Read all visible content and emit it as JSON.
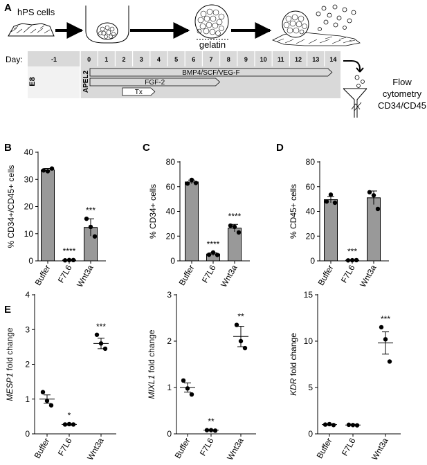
{
  "panelA": {
    "letter": "A",
    "cells_label": "hPS cells",
    "gelatin_label": "gelatin",
    "day_label": "Day:",
    "days": [
      "-1",
      "0",
      "1",
      "2",
      "3",
      "4",
      "5",
      "6",
      "7",
      "8",
      "9",
      "10",
      "11",
      "12",
      "13",
      "14"
    ],
    "e8_label": "E8",
    "apel_label": "APEL2",
    "bars": [
      {
        "label": "BMP4/SCF/VEG-F",
        "start_day": 0,
        "end_day": 14.5
      },
      {
        "label": "FGF-2",
        "start_day": 0,
        "end_day": 8
      },
      {
        "label": "Tx",
        "start_day": 2,
        "end_day": 4
      }
    ],
    "flow_label_lines": [
      "Flow",
      "cytometry",
      "CD34/CD45"
    ]
  },
  "colors": {
    "bar_fill": "#999999",
    "grey_box": "#d9d9d9",
    "light_box": "#f2f2f2",
    "arrow": "#000000"
  },
  "chart_data": [
    {
      "panel": "B",
      "type": "bar",
      "categories": [
        "Buffer",
        "F7L6",
        "Wnt3a"
      ],
      "values": [
        33.5,
        0.3,
        12.3
      ],
      "errors": [
        0.5,
        0.15,
        3.2
      ],
      "points": [
        [
          33.3,
          33.0,
          34.0
        ],
        [
          0.2,
          0.3,
          0.3
        ],
        [
          15.5,
          12.5,
          9.0
        ]
      ],
      "significance": [
        "",
        "****",
        "***"
      ],
      "ylabel": "% CD34+/CD45+ cells",
      "ylim": [
        0,
        40
      ],
      "yticks": [
        0,
        10,
        20,
        30,
        40
      ]
    },
    {
      "panel": "C",
      "type": "bar",
      "categories": [
        "Buffer",
        "F7L6",
        "Wnt3a"
      ],
      "values": [
        63.8,
        5.5,
        26.5
      ],
      "errors": [
        1.5,
        1.2,
        3.0
      ],
      "points": [
        [
          62.5,
          65.5,
          63.0
        ],
        [
          5.0,
          6.8,
          4.8
        ],
        [
          28.5,
          27.5,
          23.0
        ]
      ],
      "significance": [
        "",
        "****",
        "****"
      ],
      "ylabel": "% CD34+ cells",
      "ylim": [
        0,
        80
      ],
      "yticks": [
        0,
        20,
        40,
        60,
        80
      ]
    },
    {
      "panel": "D",
      "type": "bar",
      "categories": [
        "Buffer",
        "F7L6",
        "Wnt3a"
      ],
      "values": [
        49.5,
        0.5,
        51.0
      ],
      "errors": [
        2.5,
        0.2,
        5.5
      ],
      "points": [
        [
          48.0,
          53.5,
          47.0
        ],
        [
          0.4,
          0.5,
          0.6
        ],
        [
          55.5,
          53.0,
          42.0
        ]
      ],
      "significance": [
        "",
        "***",
        ""
      ],
      "ylabel": "% CD45+ cells",
      "ylim": [
        0,
        80
      ],
      "yticks": [
        0,
        20,
        40,
        60,
        80
      ]
    },
    {
      "panel": "E",
      "type": "scatter",
      "categories": [
        "Buffer",
        "F7L6",
        "Wnt3a"
      ],
      "means": [
        1.0,
        0.27,
        2.6
      ],
      "errors": [
        0.12,
        0.02,
        0.15
      ],
      "points": [
        [
          1.2,
          0.95,
          0.82
        ],
        [
          0.27,
          0.28,
          0.27
        ],
        [
          2.85,
          2.6,
          2.45
        ]
      ],
      "significance": [
        "",
        "*",
        "***"
      ],
      "ylabel_gene": "MESP1",
      "ylabel_rest": " fold change",
      "ylim": [
        0,
        4
      ],
      "yticks": [
        0,
        1,
        2,
        3,
        4
      ]
    },
    {
      "panel": "E2",
      "type": "scatter",
      "categories": [
        "Buffer",
        "F7L6",
        "Wnt3a"
      ],
      "means": [
        1.0,
        0.08,
        2.1
      ],
      "errors": [
        0.1,
        0.01,
        0.22
      ],
      "points": [
        [
          1.15,
          0.98,
          0.85
        ],
        [
          0.08,
          0.08,
          0.07
        ],
        [
          2.35,
          2.0,
          1.85
        ]
      ],
      "significance": [
        "",
        "**",
        "**"
      ],
      "ylabel_gene": "MIXL1",
      "ylabel_rest": " fold change",
      "ylim": [
        0,
        3
      ],
      "yticks": [
        0,
        1,
        2,
        3
      ]
    },
    {
      "panel": "E3",
      "type": "scatter",
      "categories": [
        "Buffer",
        "F7L6",
        "Wnt3a"
      ],
      "means": [
        1.0,
        0.95,
        9.8
      ],
      "errors": [
        0.05,
        0.05,
        1.2
      ],
      "points": [
        [
          1.0,
          1.05,
          0.95
        ],
        [
          0.98,
          0.95,
          0.92
        ],
        [
          11.5,
          10.2,
          7.8
        ]
      ],
      "significance": [
        "",
        "",
        "***"
      ],
      "ylabel_gene": "KDR",
      "ylabel_rest": " fold change",
      "ylim": [
        0,
        15
      ],
      "yticks": [
        0,
        5,
        10,
        15
      ]
    }
  ]
}
